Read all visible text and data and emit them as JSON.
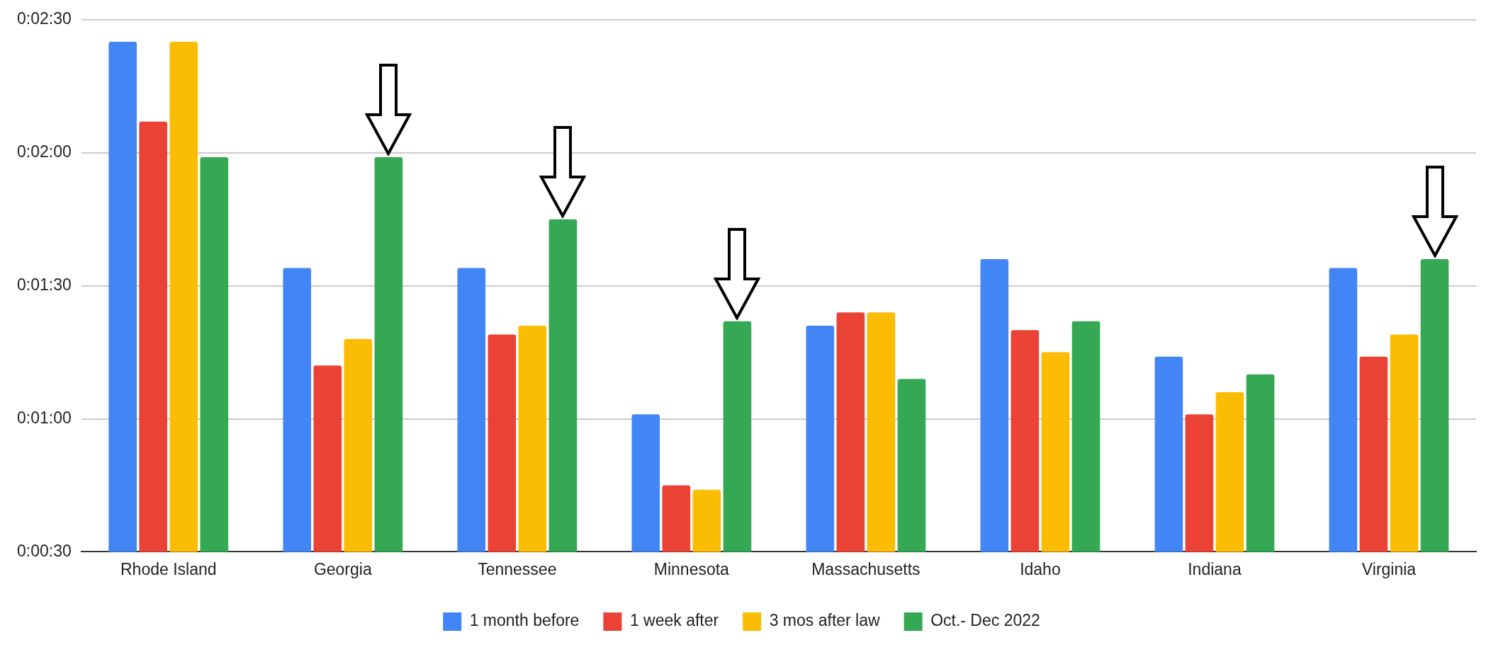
{
  "chart_data": {
    "type": "bar",
    "categories": [
      "Rhode Island",
      "Georgia",
      "Tennessee",
      "Minnesota",
      "Massachusetts",
      "Idaho",
      "Indiana",
      "Virginia"
    ],
    "series": [
      {
        "name": "1 month before",
        "color": "#4285f4",
        "values": [
          145,
          94,
          94,
          61,
          81,
          96,
          74,
          94
        ]
      },
      {
        "name": "1 week after",
        "color": "#ea4335",
        "values": [
          127,
          72,
          79,
          45,
          84,
          80,
          61,
          74
        ]
      },
      {
        "name": "3 mos after law",
        "color": "#fbbc04",
        "values": [
          145,
          78,
          81,
          44,
          84,
          75,
          66,
          79
        ]
      },
      {
        "name": "Oct.- Dec 2022",
        "color": "#34a853",
        "values": [
          119,
          119,
          105,
          82,
          69,
          82,
          70,
          96
        ]
      }
    ],
    "ylim": [
      30,
      150
    ],
    "yticks": [
      {
        "value": 30,
        "label": "0:00:30"
      },
      {
        "value": 60,
        "label": "0:01:00"
      },
      {
        "value": 90,
        "label": "0:01:30"
      },
      {
        "value": 120,
        "label": "0:02:00"
      },
      {
        "value": 150,
        "label": "0:02:30"
      }
    ],
    "grid": "y",
    "legend": "bottom"
  }
}
